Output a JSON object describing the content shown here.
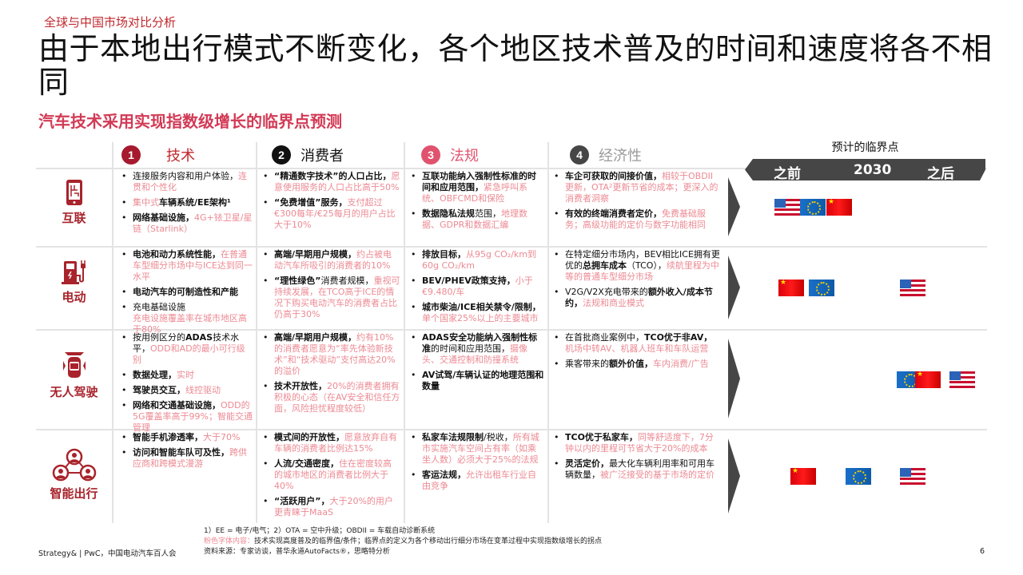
{
  "kicker": "全球与中国市场对比分析",
  "title": "由于本地出行模式不断变化，各个地区技术普及的时间和速度将各不相同",
  "subtitle": "汽车技术采用实现指数级增长的临界点预测",
  "columns": [
    {
      "num": "1",
      "label": "技术",
      "num_color": "#a6192e",
      "label_color": "#c0282d"
    },
    {
      "num": "2",
      "label": "消费者",
      "num_color": "#111111",
      "label_color": "#111111"
    },
    {
      "num": "3",
      "label": "法规",
      "num_color": "#e0536e",
      "label_color": "#e0536e"
    },
    {
      "num": "4",
      "label": "经济性",
      "num_color": "#464646",
      "label_color": "#9a9a9a"
    }
  ],
  "timeline": {
    "title": "预计的临界点",
    "before": "之前",
    "year": "2030",
    "after": "之后"
  },
  "rows": [
    {
      "label": "互联",
      "icon": "smartphone-circuit-icon",
      "flags": [
        "US",
        "EU",
        "CN"
      ],
      "cells": [
        [
          [
            {
              "t": "连接服务内容和用户体验，",
              "s": "n"
            },
            {
              "t": "连贯和个性化",
              "s": "p"
            }
          ],
          [
            {
              "t": "集中式",
              "s": "p"
            },
            {
              "t": "车辆系统/EE架构¹",
              "s": "b"
            }
          ],
          [
            {
              "t": "网络基础设施，",
              "s": "b"
            },
            {
              "t": "4G+铱卫星/星链（Starlink）",
              "s": "p"
            }
          ]
        ],
        [
          [
            {
              "t": "“精通数字技术”的人口占比，",
              "s": "b"
            },
            {
              "t": "愿意使用服务的人口占比高于50%",
              "s": "p"
            }
          ],
          [
            {
              "t": "“免费增值”服务，",
              "s": "b"
            },
            {
              "t": "支付超过€300每年/€25每月的用户占比大于10%",
              "s": "p"
            }
          ]
        ],
        [
          [
            {
              "t": "互联功能纳入强制性标准的时间和应用范围，",
              "s": "b"
            },
            {
              "t": "紧急呼叫系统、OBFCMD和保险",
              "s": "p"
            }
          ],
          [
            {
              "t": "数据隐私法规",
              "s": "b"
            },
            {
              "t": "范围，",
              "s": "n"
            },
            {
              "t": "地理数据、GDPR和数据汇编",
              "s": "p"
            }
          ]
        ],
        [
          [
            {
              "t": "车企可获取的间接价值，",
              "s": "b"
            },
            {
              "t": "相较于OBDII更新，OTA²更新节省的成本；更深入的消费者洞察",
              "s": "p"
            }
          ],
          [
            {
              "t": "有效的终端消费者定价，",
              "s": "b"
            },
            {
              "t": "免费基础服务；高级功能的定价与数字功能相同",
              "s": "p"
            }
          ]
        ]
      ]
    },
    {
      "label": "电动",
      "icon": "charging-station-icon",
      "flags": [
        "CN",
        "EU",
        "US"
      ],
      "cells": [
        [
          [
            {
              "t": "电池和动力系统性能，",
              "s": "b"
            },
            {
              "t": "在普通车型细分市场中与ICE达到同一水平",
              "s": "p"
            }
          ],
          [
            {
              "t": "电动汽车的可制造性和产能",
              "s": "b"
            }
          ],
          [
            {
              "t": "充电基础设施",
              "s": "n"
            },
            {
              "t": "充电设施覆盖率在城市地区高于80%",
              "s": "pb"
            }
          ]
        ],
        [
          [
            {
              "t": "高端/早期用户规模，",
              "s": "b"
            },
            {
              "t": "约占被电动汽车所吸引的消费者的10%",
              "s": "p"
            }
          ],
          [
            {
              "t": "“理性绿色”",
              "s": "b"
            },
            {
              "t": "消费者规模，",
              "s": "n"
            },
            {
              "t": "重视可持续发展，在TCO高于ICE的情况下购买电动汽车的消费者占比仍高于30%",
              "s": "p"
            }
          ]
        ],
        [
          [
            {
              "t": "排放目标，",
              "s": "b"
            },
            {
              "t": "从95g CO₂/km到60g CO₂/km",
              "s": "p"
            }
          ],
          [
            {
              "t": "BEV/PHEV政策支持，",
              "s": "b"
            },
            {
              "t": "小于€9.480/车",
              "s": "p"
            }
          ],
          [
            {
              "t": "城市柴油/ICE相关禁令/限制，",
              "s": "b"
            },
            {
              "t": "单个国家25%以上的主要城市",
              "s": "p"
            }
          ]
        ],
        [
          [
            {
              "t": "在特定细分市场内，BEV相比ICE拥有更优的",
              "s": "n"
            },
            {
              "t": "总拥车成本",
              "s": "b"
            },
            {
              "t": "（TCO），",
              "s": "n"
            },
            {
              "t": "续航里程为中等的普通车型细分市场",
              "s": "p"
            }
          ],
          [
            {
              "t": "V2G/V2X充电带来的",
              "s": "n"
            },
            {
              "t": "额外收入/成本节约，",
              "s": "b"
            },
            {
              "t": "法规和商业模式",
              "s": "p"
            }
          ]
        ]
      ]
    },
    {
      "label": "无人驾驶",
      "icon": "autonomous-car-icon",
      "flags": [
        "EU",
        "CN",
        "US"
      ],
      "cells": [
        [
          [
            {
              "t": "按用例区分的",
              "s": "n"
            },
            {
              "t": "ADAS",
              "s": "b"
            },
            {
              "t": "技术水平，",
              "s": "n"
            },
            {
              "t": "ODD和AD的最小可行级别",
              "s": "p"
            }
          ],
          [
            {
              "t": "数据处理，",
              "s": "b"
            },
            {
              "t": "实时",
              "s": "p"
            }
          ],
          [
            {
              "t": "驾驶员交互，",
              "s": "b"
            },
            {
              "t": "线控驱动",
              "s": "p"
            }
          ],
          [
            {
              "t": "网络和交通基础设施，",
              "s": "b"
            },
            {
              "t": "ODD的5G覆盖率高于99%；智能交通管理",
              "s": "p"
            }
          ]
        ],
        [
          [
            {
              "t": "高端/早期用户规模，",
              "s": "b"
            },
            {
              "t": "约有10%的消费者愿意为“率先体验新技术”和“技术驱动”支付高达20%的溢价",
              "s": "p"
            }
          ],
          [
            {
              "t": "技术开放性，",
              "s": "b"
            },
            {
              "t": "20%的消费者拥有积极的心态（在AV安全和信任方面，风险担忧程度较低）",
              "s": "p"
            }
          ]
        ],
        [
          [
            {
              "t": "ADAS安全功能纳入强制性标准",
              "s": "b"
            },
            {
              "t": "的时间和应用范围，",
              "s": "n"
            },
            {
              "t": "摄像头、交通控制和防撞系统",
              "s": "p"
            }
          ],
          [
            {
              "t": "AV试驾/车辆认证的地理范围和数量",
              "s": "b"
            }
          ]
        ],
        [
          [
            {
              "t": "在首批商业案例中，",
              "s": "n"
            },
            {
              "t": "TCO优于非AV，",
              "s": "b"
            },
            {
              "t": "机场中转AV、机器人班车和车队运营",
              "s": "p"
            }
          ],
          [
            {
              "t": "乘客带来的",
              "s": "n"
            },
            {
              "t": "额外价值，",
              "s": "b"
            },
            {
              "t": "车内消费/广告",
              "s": "p"
            }
          ]
        ]
      ]
    },
    {
      "label": "智能出行",
      "icon": "shared-mobility-network-icon",
      "flags": [
        "CN",
        "EU",
        "US"
      ],
      "cells": [
        [
          [
            {
              "t": "智能手机渗透率，",
              "s": "b"
            },
            {
              "t": "大于70%",
              "s": "p"
            }
          ],
          [
            {
              "t": "访问和智能车队可及性，",
              "s": "b"
            },
            {
              "t": "跨供应商和跨模式漫游",
              "s": "p"
            }
          ]
        ],
        [
          [
            {
              "t": "模式间的开放性，",
              "s": "b"
            },
            {
              "t": "愿意放弃自有车辆的消费者比例达15%",
              "s": "p"
            }
          ],
          [
            {
              "t": "人流/交通密度，",
              "s": "b"
            },
            {
              "t": "住在密度较高的城市地区的消费者比例大于40%",
              "s": "p"
            }
          ],
          [
            {
              "t": "“活跃用户”，",
              "s": "b"
            },
            {
              "t": "大于20%的用户更青睐于MaaS",
              "s": "p"
            }
          ]
        ],
        [
          [
            {
              "t": "私家车法规限制",
              "s": "b"
            },
            {
              "t": "/税收，",
              "s": "n"
            },
            {
              "t": "所有城市实施汽车空间占有率（如乘坐人数）必须大于25%的法规",
              "s": "p"
            }
          ],
          [
            {
              "t": "客运法规，",
              "s": "b"
            },
            {
              "t": "允许出租车行业自由竞争",
              "s": "p"
            }
          ]
        ],
        [
          [
            {
              "t": "TCO优于私家车，",
              "s": "b"
            },
            {
              "t": "同等舒适度下，7分钟以内的里程可节省大于20%的成本",
              "s": "p"
            }
          ],
          [
            {
              "t": "灵活定价，",
              "s": "b"
            },
            {
              "t": "最大化车辆利用率和可用车辆数量，",
              "s": "n"
            },
            {
              "t": "被广泛接受的基于市场的定价",
              "s": "p"
            }
          ]
        ]
      ]
    }
  ],
  "footer": {
    "note1": "1）EE = 电子/电气；2）OTA = 空中升级；OBDII = 车载自动诊断系统",
    "note2_label": "粉色字体内容：",
    "note2": "技术实现高度普及的临界值/条件；临界点的定义为各个移动出行细分市场在变革过程中实现指数级增长的拐点",
    "source": "资料来源：专家访谈，普华永道AutoFacts®，思略特分析",
    "credit": "Strategy& | PwC，中国电动汽车百人会",
    "page": "6"
  },
  "colors": {
    "brand_red": "#a8232b",
    "pink_text": "#ec8a93",
    "timeline_gray": "#464646"
  }
}
